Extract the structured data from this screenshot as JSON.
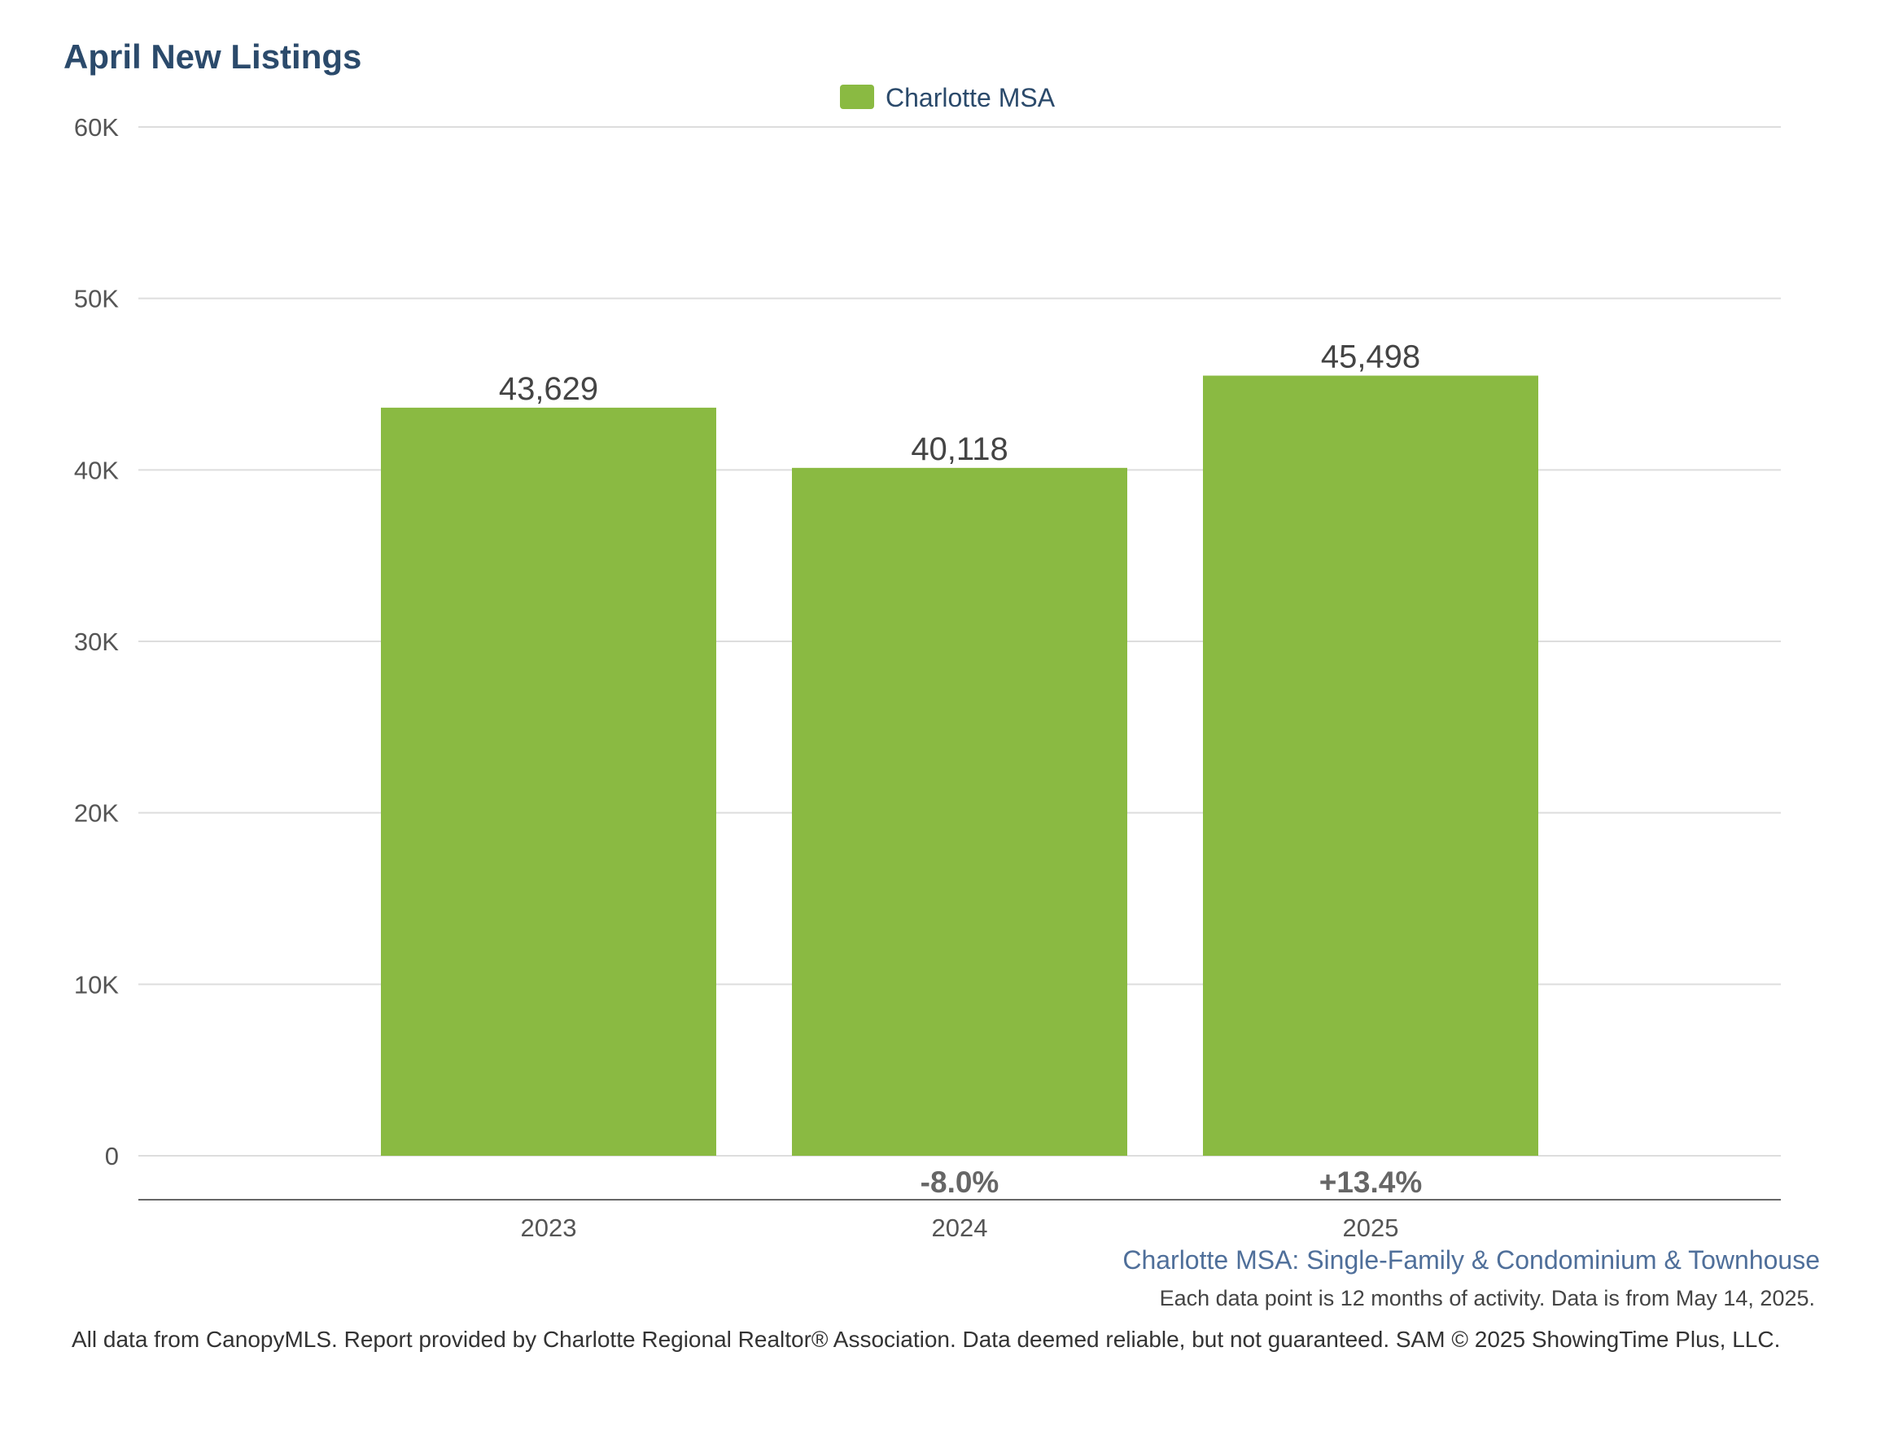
{
  "colors": {
    "bar": "#8aba42",
    "title": "#2b4a6b",
    "grid": "#dddddd",
    "axis": "#666666"
  },
  "chart_data": {
    "type": "bar",
    "title": "April New Listings",
    "categories": [
      "2023",
      "2024",
      "2025"
    ],
    "series": [
      {
        "name": "Charlotte MSA",
        "values": [
          43629,
          40118,
          45498
        ]
      }
    ],
    "data_labels": [
      "43,629",
      "40,118",
      "45,498"
    ],
    "change_labels": [
      "",
      "-8.0%",
      "+13.4%"
    ],
    "ylim": [
      0,
      60000
    ],
    "y_ticks": [
      0,
      10000,
      20000,
      30000,
      40000,
      50000,
      60000
    ],
    "y_tick_labels": [
      "0",
      "10K",
      "20K",
      "30K",
      "40K",
      "50K",
      "60K"
    ],
    "xlabel": "",
    "ylabel": "",
    "grid": true,
    "legend_position": "top-center"
  },
  "subtitle": "Charlotte MSA: Single-Family & Condominium & Townhouse",
  "note": "Each data point is 12 months of activity. Data is from May 14, 2025.",
  "footer": "All data from CanopyMLS. Report provided by Charlotte Regional Realtor® Association. Data deemed reliable, but not guaranteed. SAM © 2025 ShowingTime Plus, LLC."
}
